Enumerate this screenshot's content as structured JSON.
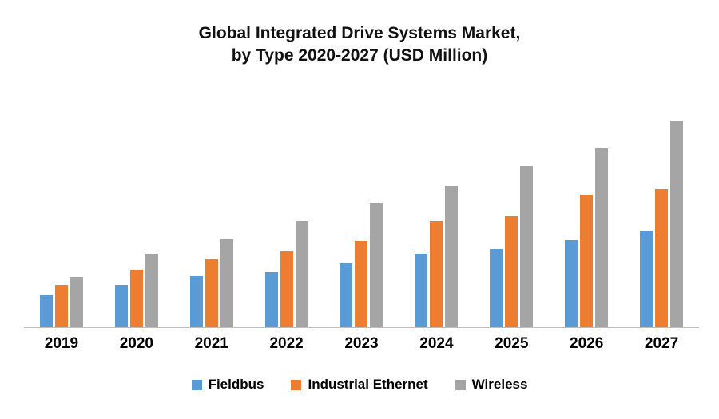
{
  "title": {
    "line1": "Global Integrated Drive Systems Market,",
    "line2": "by Type 2020-2027 (USD Million)"
  },
  "chart_data": {
    "type": "bar",
    "title": "Global Integrated Drive Systems Market, by Type 2020-2027 (USD Million)",
    "categories": [
      "2019",
      "2020",
      "2021",
      "2022",
      "2023",
      "2024",
      "2025",
      "2026",
      "2027"
    ],
    "series": [
      {
        "name": "Fieldbus",
        "color": "#5B9BD5",
        "values": [
          41,
          55,
          66,
          72,
          83,
          95,
          102,
          113,
          125
        ]
      },
      {
        "name": "Industrial Ethernet",
        "color": "#ED7D31",
        "values": [
          55,
          75,
          88,
          99,
          112,
          138,
          144,
          172,
          179
        ]
      },
      {
        "name": "Wireless",
        "color": "#A5A5A5",
        "values": [
          65,
          95,
          114,
          138,
          162,
          184,
          209,
          232,
          268
        ]
      }
    ],
    "xlabel": "",
    "ylabel": "",
    "ylim": [
      0,
      280
    ],
    "grid": false,
    "legend_position": "bottom",
    "axis_line_color": "#bfbfbf"
  }
}
